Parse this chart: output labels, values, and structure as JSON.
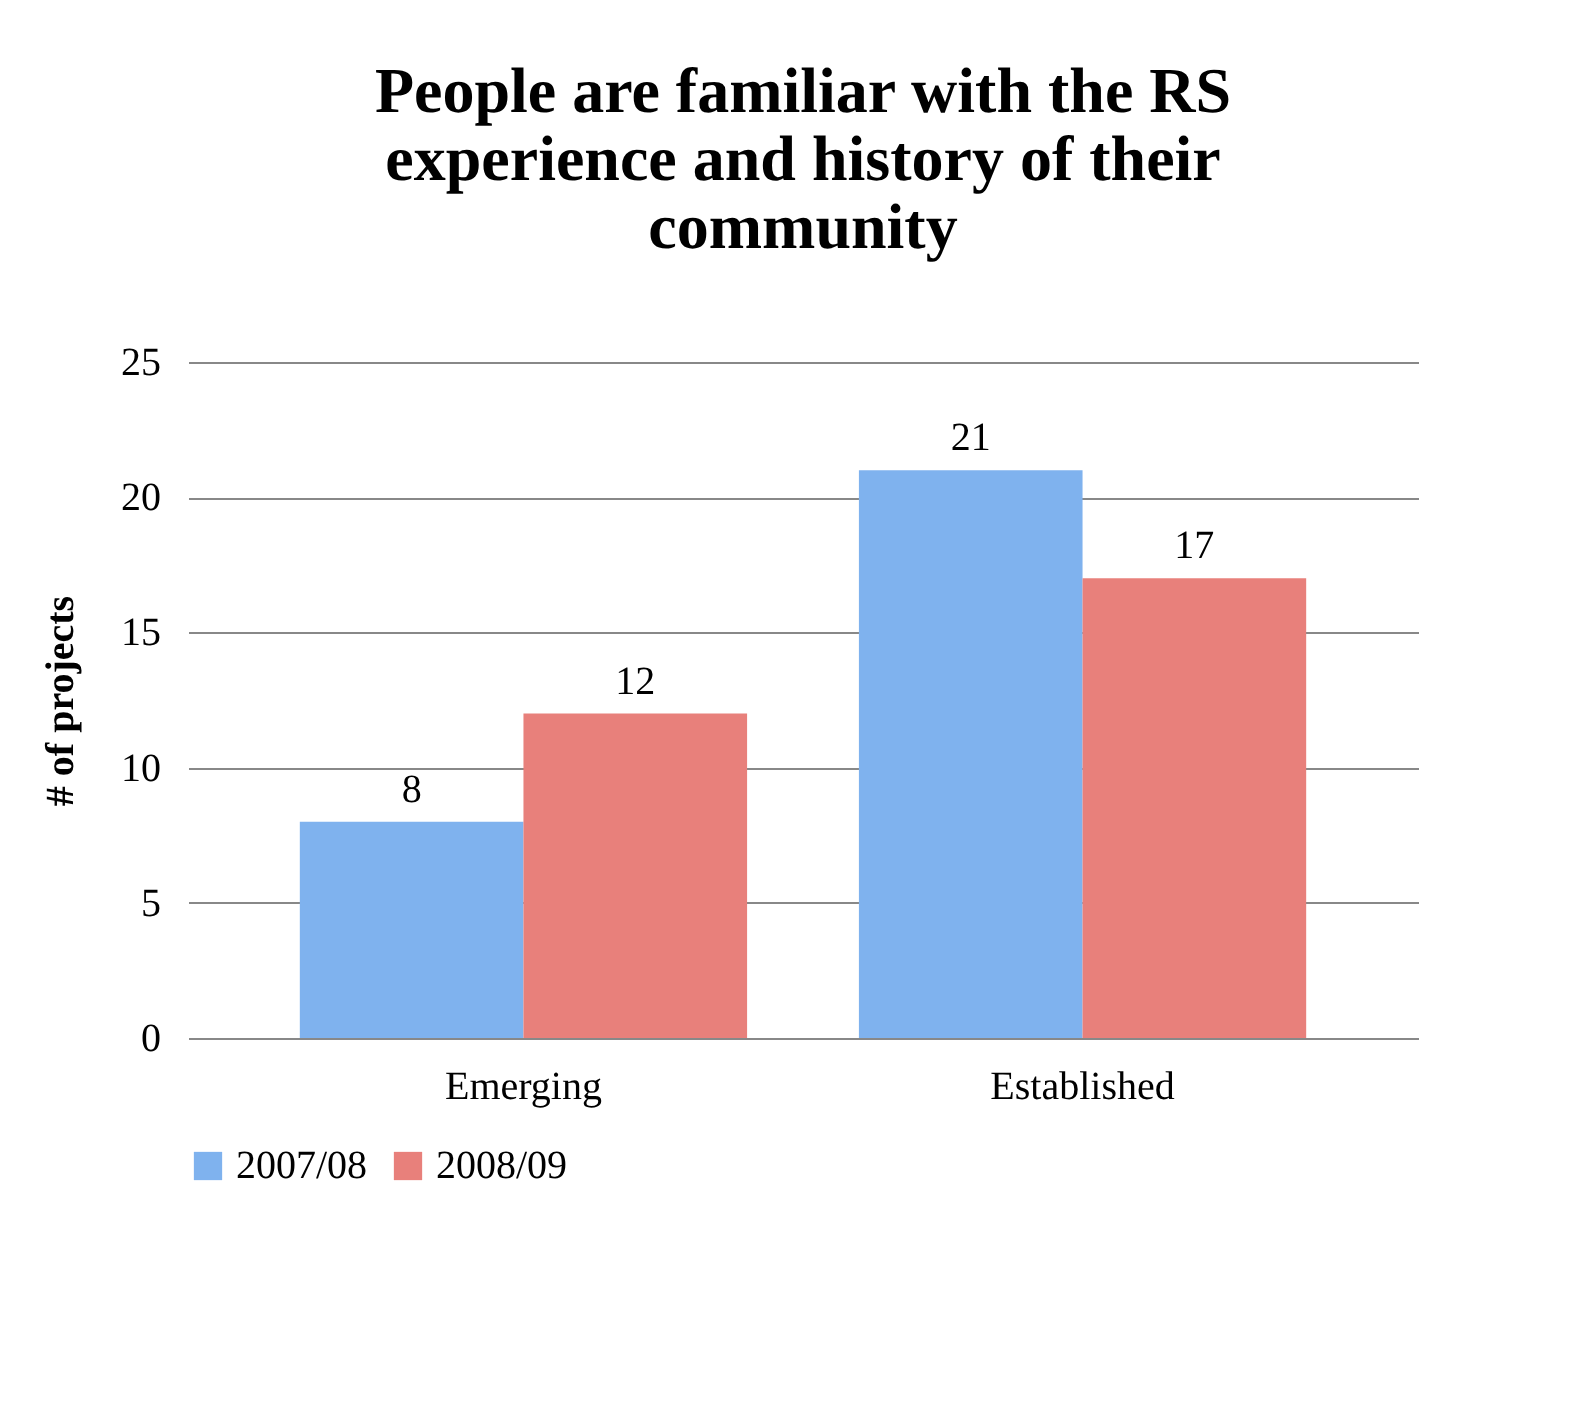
{
  "chart_data": {
    "type": "bar",
    "title": "People are familiar with the RS experience and history of their community",
    "ylabel": "# of projects",
    "categories": [
      "Emerging",
      "Established"
    ],
    "series": [
      {
        "name": "2007/08",
        "color": "#7fb2ee",
        "values": [
          8,
          21
        ]
      },
      {
        "name": "2008/09",
        "color": "#e8807b",
        "values": [
          12,
          17
        ]
      }
    ],
    "ylim": [
      0,
      25
    ],
    "yticks": [
      0,
      5,
      10,
      15,
      20,
      25
    ],
    "grid": "y",
    "legend": "bottom",
    "data_labels": true
  }
}
